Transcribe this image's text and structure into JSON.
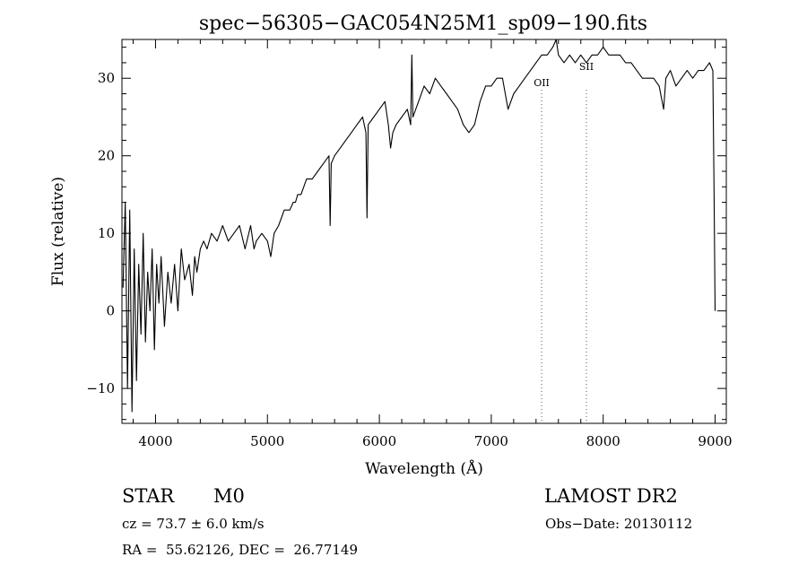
{
  "chart_data": {
    "type": "line",
    "title": "spec−56305−GAC054N25M1_sp09−190.fits",
    "xlabel": "Wavelength (Å)",
    "ylabel": "Flux (relative)",
    "xlim": [
      3700,
      9100
    ],
    "ylim": [
      -14.5,
      35
    ],
    "x_ticks": [
      4000,
      5000,
      6000,
      7000,
      8000,
      9000
    ],
    "x_tick_labels": [
      "4000",
      "5000",
      "6000",
      "7000",
      "8000",
      "9000"
    ],
    "y_ticks": [
      -10,
      0,
      10,
      20,
      30
    ],
    "y_tick_labels": [
      "−10",
      "0",
      "10",
      "20",
      "30"
    ],
    "grid": false,
    "series": [
      {
        "x": [
          3710,
          3730,
          3750,
          3770,
          3790,
          3810,
          3830,
          3850,
          3870,
          3890,
          3910,
          3930,
          3950,
          3970,
          3990,
          4010,
          4030,
          4050,
          4080,
          4110,
          4140,
          4170,
          4200,
          4230,
          4260,
          4300,
          4330,
          4350,
          4370,
          4400,
          4430,
          4460,
          4500,
          4550,
          4600,
          4650,
          4700,
          4750,
          4800,
          4850,
          4880,
          4900,
          4950,
          5000,
          5030,
          5060,
          5100,
          5150,
          5200,
          5230,
          5250,
          5270,
          5300,
          5350,
          5400,
          5450,
          5500,
          5550,
          5560,
          5570,
          5600,
          5650,
          5700,
          5750,
          5800,
          5850,
          5880,
          5890,
          5900,
          5950,
          6000,
          6050,
          6080,
          6100,
          6120,
          6150,
          6200,
          6250,
          6280,
          6290,
          6300,
          6350,
          6400,
          6450,
          6500,
          6550,
          6600,
          6650,
          6700,
          6750,
          6800,
          6850,
          6900,
          6950,
          7000,
          7050,
          7100,
          7150,
          7200,
          7250,
          7300,
          7350,
          7400,
          7450,
          7500,
          7550,
          7580,
          7600,
          7650,
          7700,
          7750,
          7800,
          7850,
          7900,
          7950,
          8000,
          8050,
          8100,
          8150,
          8200,
          8250,
          8300,
          8350,
          8400,
          8450,
          8500,
          8540,
          8560,
          8600,
          8650,
          8700,
          8750,
          8800,
          8850,
          8900,
          8950,
          8980,
          8990,
          9000
        ],
        "y": [
          3,
          14,
          -10,
          13,
          -13,
          8,
          -9,
          6,
          -3,
          10,
          -4,
          5,
          0,
          8,
          -5,
          6,
          1,
          7,
          -2,
          5,
          1,
          6,
          0,
          8,
          4,
          6,
          2,
          7,
          5,
          8,
          9,
          8,
          10,
          9,
          11,
          9,
          10,
          11,
          8,
          11,
          8,
          9,
          10,
          9,
          7,
          10,
          11,
          13,
          13,
          14,
          14,
          15,
          15,
          17,
          17,
          18,
          19,
          20,
          11,
          19,
          20,
          21,
          22,
          23,
          24,
          25,
          23,
          12,
          24,
          25,
          26,
          27,
          24,
          21,
          23,
          24,
          25,
          26,
          24,
          33,
          25,
          27,
          29,
          28,
          30,
          29,
          28,
          27,
          26,
          24,
          23,
          24,
          27,
          29,
          29,
          30,
          30,
          26,
          28,
          29,
          30,
          31,
          32,
          33,
          33,
          34,
          35,
          33,
          32,
          33,
          32,
          33,
          32,
          33,
          33,
          34,
          33,
          33,
          33,
          32,
          32,
          31,
          30,
          30,
          30,
          29,
          26,
          30,
          31,
          29,
          30,
          31,
          30,
          31,
          31,
          32,
          31,
          16,
          0
        ]
      }
    ],
    "annotations": [
      {
        "text": "OII",
        "x": 7450
      },
      {
        "text": "SII",
        "x": 7850
      }
    ],
    "info": {
      "class_label": "STAR",
      "subclass": "M0",
      "survey": "LAMOST DR2",
      "cz": "cz = 73.7 ± 6.0 km/s",
      "obs_date": "Obs−Date: 20130112",
      "coords": "RA =  55.62126, DEC =  26.77149"
    }
  }
}
